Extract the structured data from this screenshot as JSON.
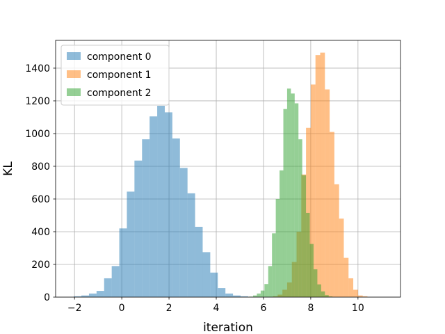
{
  "chart_data": {
    "type": "bar",
    "title": "",
    "xlabel": "iteration",
    "ylabel": "KL",
    "xlim": [
      -2.8,
      11.8
    ],
    "ylim": [
      0,
      1570
    ],
    "grid": true,
    "legend_position": "top-left",
    "xticks": [
      -2,
      0,
      2,
      4,
      6,
      8,
      10
    ],
    "xtick_labels": [
      "−2",
      "0",
      "2",
      "4",
      "6",
      "8",
      "10"
    ],
    "yticks": [
      0,
      200,
      400,
      600,
      800,
      1000,
      1200,
      1400
    ],
    "ytick_labels": [
      "0",
      "200",
      "400",
      "600",
      "800",
      "1000",
      "1200",
      "1400"
    ],
    "series": [
      {
        "name": "component 0",
        "color": "#1f77b4",
        "opacity": 0.5,
        "bin_start": -2.03,
        "bin_width": 0.3209,
        "values": [
          5,
          10,
          22,
          38,
          115,
          190,
          420,
          645,
          835,
          965,
          1105,
          1170,
          1130,
          970,
          790,
          635,
          430,
          275,
          150,
          55,
          22,
          10,
          5
        ]
      },
      {
        "name": "component 1",
        "color": "#ff7f0e",
        "opacity": 0.5,
        "bin_start": 6.4,
        "bin_width": 0.2,
        "values": [
          5,
          15,
          45,
          90,
          215,
          400,
          750,
          1035,
          1300,
          1480,
          1495,
          1270,
          1010,
          690,
          480,
          240,
          115,
          45,
          10,
          5
        ]
      },
      {
        "name": "component 2",
        "color": "#2ca02c",
        "opacity": 0.5,
        "bin_start": 5.4,
        "bin_width": 0.16,
        "values": [
          3,
          10,
          22,
          40,
          80,
          190,
          390,
          600,
          775,
          1150,
          1275,
          1245,
          1185,
          965,
          745,
          515,
          325,
          170,
          78,
          35,
          12,
          4
        ]
      }
    ]
  }
}
